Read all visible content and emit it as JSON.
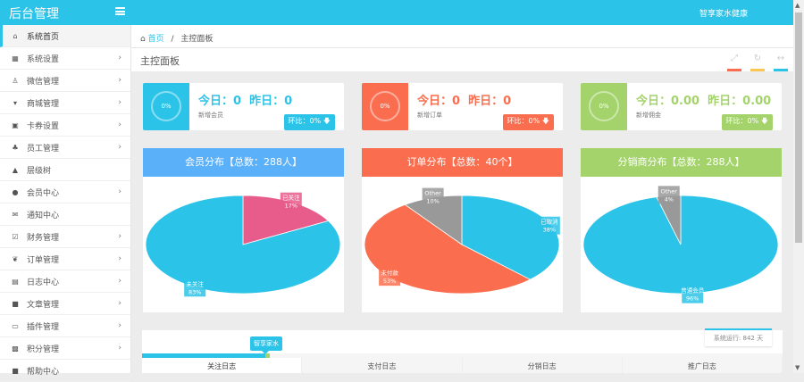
{
  "header": {
    "brand": "后台管理",
    "user": "智享家水健康"
  },
  "sidebar": {
    "items": [
      {
        "label": "系统首页",
        "icon": "home-icon",
        "glyph": "⌂",
        "arrow": false
      },
      {
        "label": "系统设置",
        "icon": "grid-icon",
        "glyph": "▦",
        "arrow": true
      },
      {
        "label": "微信管理",
        "icon": "linux-icon",
        "glyph": "♙",
        "arrow": true
      },
      {
        "label": "商城管理",
        "icon": "cart-icon",
        "glyph": "▾",
        "arrow": true
      },
      {
        "label": "卡券设置",
        "icon": "money-icon",
        "glyph": "▣",
        "arrow": true
      },
      {
        "label": "员工管理",
        "icon": "sitemap-icon",
        "glyph": "♣",
        "arrow": true
      },
      {
        "label": "层级树",
        "icon": "tree-icon",
        "glyph": "▲",
        "arrow": false
      },
      {
        "label": "会员中心",
        "icon": "user-icon",
        "glyph": "●",
        "arrow": true
      },
      {
        "label": "通知中心",
        "icon": "envelope-icon",
        "glyph": "✉",
        "arrow": false
      },
      {
        "label": "财务管理",
        "icon": "check-square-icon",
        "glyph": "☑",
        "arrow": true
      },
      {
        "label": "订单管理",
        "icon": "leaf-icon",
        "glyph": "❦",
        "arrow": true
      },
      {
        "label": "日志中心",
        "icon": "list-icon",
        "glyph": "▤",
        "arrow": true
      },
      {
        "label": "文章管理",
        "icon": "book-icon",
        "glyph": "■",
        "arrow": true
      },
      {
        "label": "插件管理",
        "icon": "inbox-icon",
        "glyph": "▭",
        "arrow": true
      },
      {
        "label": "积分管理",
        "icon": "gift-icon",
        "glyph": "▩",
        "arrow": true
      },
      {
        "label": "帮助中心",
        "icon": "book-icon",
        "glyph": "■",
        "arrow": false
      }
    ]
  },
  "breadcrumb": {
    "home": "首页",
    "sep": "/",
    "current": "主控面板"
  },
  "page_title": "主控面板",
  "tool_colors": [
    "#fa6e4f",
    "#fdc654",
    "#2cc3e8"
  ],
  "cards": [
    {
      "ring": "0%",
      "today": "今日：0",
      "yesterday": "昨日：0",
      "label": "新增会员",
      "badge": "环比：0% 🡇",
      "color": "#2cc3e8"
    },
    {
      "ring": "0%",
      "today": "今日：0",
      "yesterday": "昨日：0",
      "label": "新增订单",
      "badge": "环比：0% 🡇",
      "color": "#fa6e4f"
    },
    {
      "ring": "0%",
      "today": "今日：0.00",
      "yesterday": "昨日：0.00",
      "label": "新增佣金",
      "badge": "环比：0% 🡇",
      "color": "#a3d36a"
    }
  ],
  "chart_data": [
    {
      "type": "pie",
      "title": "会员分布【总数：288人】",
      "header_color": "#5bb0fa",
      "slices": [
        {
          "name": "已关注",
          "value": 17,
          "color": "#e85c8b"
        },
        {
          "name": "未关注",
          "value": 83,
          "color": "#2cc3e8"
        }
      ]
    },
    {
      "type": "pie",
      "title": "订单分布【总数：40个】",
      "header_color": "#fa6e4f",
      "slices": [
        {
          "name": "已取消",
          "value": 38,
          "color": "#2cc3e8"
        },
        {
          "name": "未付款",
          "value": 53,
          "color": "#fa6e4f"
        },
        {
          "name": "Other",
          "value": 10,
          "color": "#999999"
        }
      ]
    },
    {
      "type": "pie",
      "title": "分销商分布【总数：288人】",
      "header_color": "#a3d36a",
      "slices": [
        {
          "name": "普通会员",
          "value": 96,
          "color": "#2cc3e8"
        },
        {
          "name": "Other",
          "value": 4,
          "color": "#999999"
        }
      ]
    }
  ],
  "bottom": {
    "tooltip": "智享家水",
    "uptime": "系统运行: 842 天",
    "progress": 0.2,
    "tabs": [
      "关注日志",
      "支付日志",
      "分销日志",
      "推广日志"
    ]
  }
}
